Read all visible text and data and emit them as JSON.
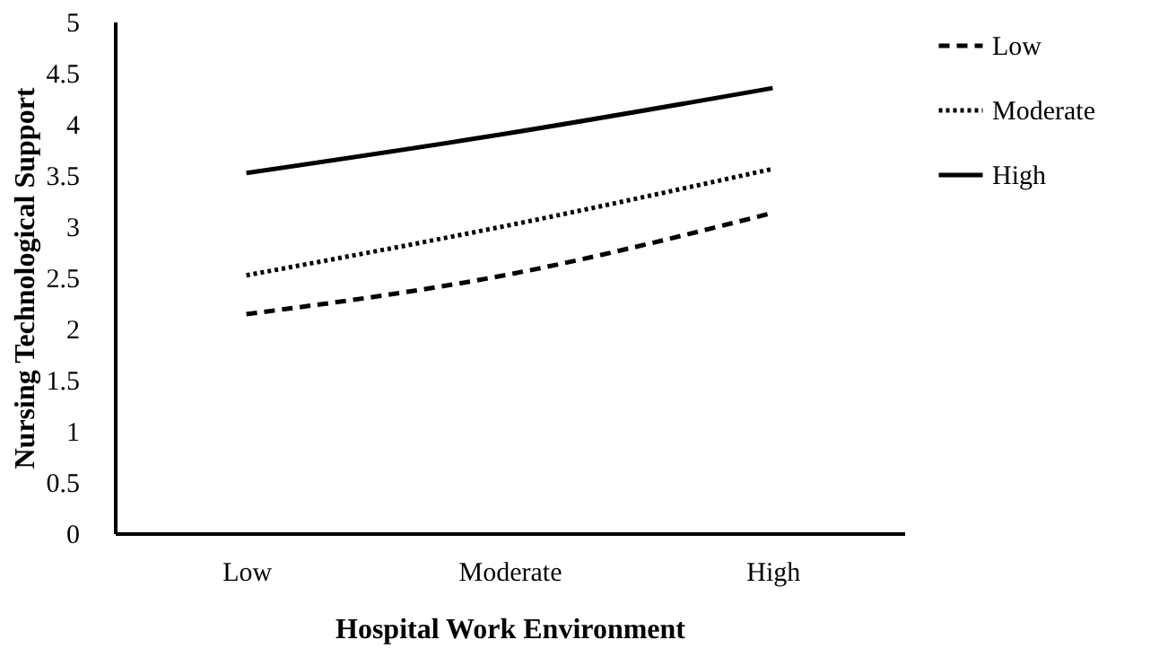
{
  "chart_data": {
    "type": "line",
    "xlabel": "Hospital Work Environment",
    "ylabel": "Nursing Technological Support",
    "categories": [
      "Low",
      "Moderate",
      "High"
    ],
    "series": [
      {
        "name": "Low",
        "color": "#000000",
        "line_style": "dashed",
        "values": [
          2.14,
          2.53,
          3.13
        ]
      },
      {
        "name": "Moderate",
        "color": "#000000",
        "line_style": "dotted",
        "values": [
          2.52,
          3.01,
          3.56
        ]
      },
      {
        "name": "High",
        "color": "#000000",
        "line_style": "solid",
        "values": [
          3.52,
          3.91,
          4.35
        ]
      }
    ],
    "ylim": [
      0,
      5
    ],
    "yticks": [
      0,
      0.5,
      1,
      1.5,
      2,
      2.5,
      3,
      3.5,
      4,
      4.5,
      5
    ],
    "grid": false,
    "legend": "right",
    "marker": "none"
  }
}
